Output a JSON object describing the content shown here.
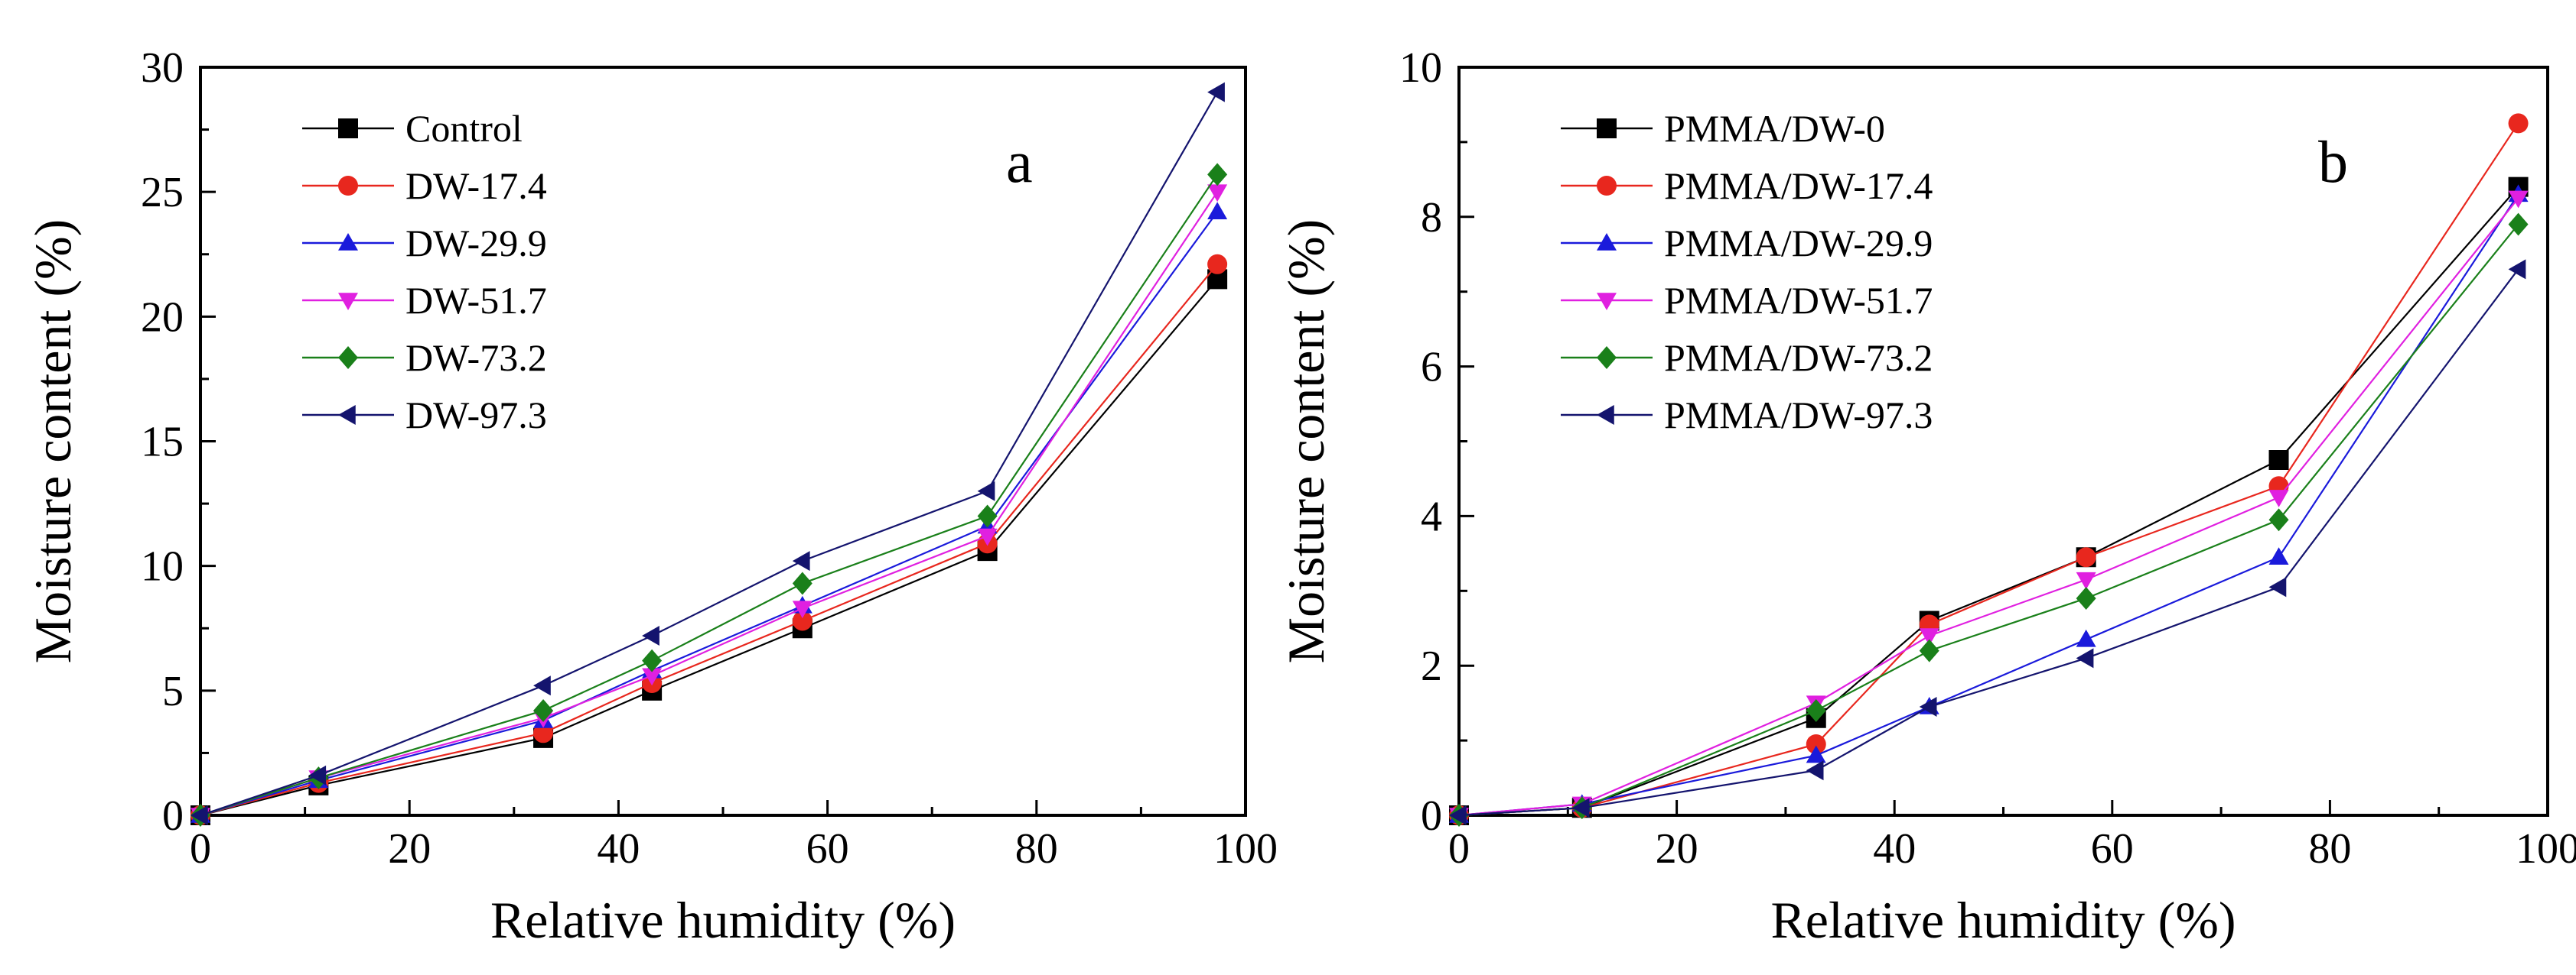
{
  "chart_data": [
    {
      "type": "line",
      "panel_label": "a",
      "xlabel": "Relative humidity (%)",
      "ylabel": "Moisture content (%)",
      "xlim": [
        0,
        100
      ],
      "ylim": [
        0,
        30
      ],
      "xticks": [
        0,
        20,
        40,
        60,
        80,
        100
      ],
      "yticks": [
        0,
        5,
        10,
        15,
        20,
        25,
        30
      ],
      "legend_position": "top-left",
      "x": [
        0,
        11.3,
        32.8,
        43.2,
        57.6,
        75.3,
        97.3
      ],
      "series": [
        {
          "name": "Control",
          "marker": "square",
          "color": "#000000",
          "values": [
            0,
            1.2,
            3.1,
            5.0,
            7.5,
            10.6,
            21.5
          ]
        },
        {
          "name": "DW-17.4",
          "marker": "circle",
          "color": "#e8271e",
          "values": [
            0,
            1.3,
            3.3,
            5.3,
            7.8,
            10.9,
            22.1
          ]
        },
        {
          "name": "DW-29.9",
          "marker": "triangle-up",
          "color": "#1a1adb",
          "values": [
            0,
            1.4,
            3.8,
            5.8,
            8.4,
            11.6,
            24.2
          ]
        },
        {
          "name": "DW-51.7",
          "marker": "triangle-down",
          "color": "#e020e0",
          "values": [
            0,
            1.5,
            3.9,
            5.6,
            8.3,
            11.2,
            25.0
          ]
        },
        {
          "name": "DW-73.2",
          "marker": "diamond",
          "color": "#1a801a",
          "values": [
            0,
            1.5,
            4.2,
            6.2,
            9.3,
            12.0,
            25.7
          ]
        },
        {
          "name": "DW-97.3",
          "marker": "triangle-left",
          "color": "#14146e",
          "values": [
            0,
            1.6,
            5.2,
            7.2,
            10.2,
            13.0,
            29.0
          ]
        }
      ]
    },
    {
      "type": "line",
      "panel_label": "b",
      "xlabel": "Relative humidity (%)",
      "ylabel": "Moisture content (%)",
      "xlim": [
        0,
        100
      ],
      "ylim": [
        0,
        10
      ],
      "xticks": [
        0,
        20,
        40,
        60,
        80,
        100
      ],
      "yticks": [
        0,
        2,
        4,
        6,
        8,
        10
      ],
      "legend_position": "top-left",
      "x": [
        0,
        11.3,
        32.8,
        43.2,
        57.6,
        75.3,
        97.3
      ],
      "series": [
        {
          "name": "PMMA/DW-0",
          "marker": "square",
          "color": "#000000",
          "values": [
            0,
            0.1,
            1.3,
            2.6,
            3.45,
            4.75,
            8.4
          ]
        },
        {
          "name": "PMMA/DW-17.4",
          "marker": "circle",
          "color": "#e8271e",
          "values": [
            0,
            0.1,
            0.95,
            2.55,
            3.45,
            4.4,
            9.25
          ]
        },
        {
          "name": "PMMA/DW-29.9",
          "marker": "triangle-up",
          "color": "#1a1adb",
          "values": [
            0,
            0.15,
            0.8,
            1.45,
            2.35,
            3.45,
            8.3
          ]
        },
        {
          "name": "PMMA/DW-51.7",
          "marker": "triangle-down",
          "color": "#e020e0",
          "values": [
            0,
            0.15,
            1.5,
            2.4,
            3.15,
            4.25,
            8.25
          ]
        },
        {
          "name": "PMMA/DW-73.2",
          "marker": "diamond",
          "color": "#1a801a",
          "values": [
            0,
            0.1,
            1.4,
            2.2,
            2.9,
            3.95,
            7.9
          ]
        },
        {
          "name": "PMMA/DW-97.3",
          "marker": "triangle-left",
          "color": "#14146e",
          "values": [
            0,
            0.1,
            0.6,
            1.45,
            2.1,
            3.05,
            7.3
          ]
        }
      ]
    }
  ]
}
